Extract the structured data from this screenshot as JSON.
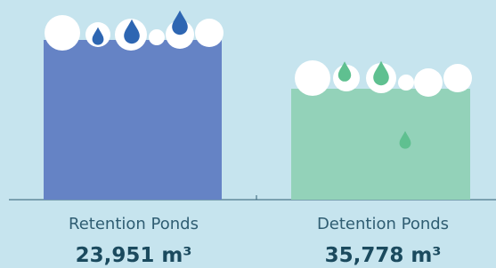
{
  "items": [
    {
      "label": "Retention Ponds",
      "value": "23,951 m³"
    },
    {
      "label": "Detention Ponds",
      "value": "35,778 m³"
    }
  ]
}
